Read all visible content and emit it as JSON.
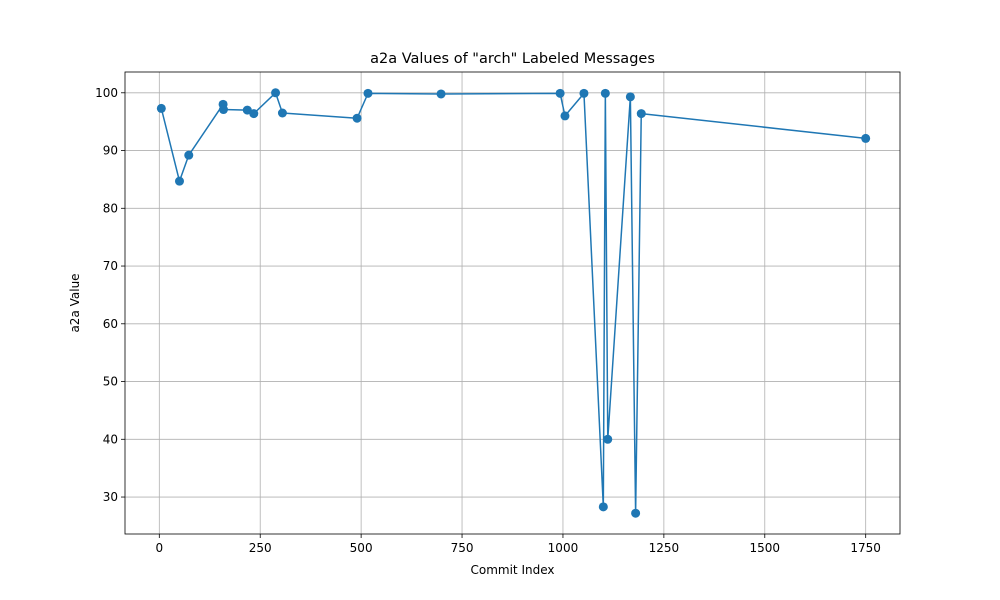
{
  "chart_data": {
    "type": "line",
    "title": "a2a Values of \"arch\" Labeled Messages",
    "xlabel": "Commit Index",
    "ylabel": "a2a Value",
    "xlim": [
      -85,
      1835
    ],
    "ylim": [
      23.6,
      103.6
    ],
    "xticks": [
      0,
      250,
      500,
      750,
      1000,
      1250,
      1500,
      1750
    ],
    "yticks": [
      30,
      40,
      50,
      60,
      70,
      80,
      90,
      100
    ],
    "grid": true,
    "color": "#1f77b4",
    "series": [
      {
        "x": [
          5,
          50,
          73,
          158,
          159,
          218,
          234,
          288,
          305,
          490,
          517,
          698,
          993,
          1005,
          1052,
          1100,
          1105,
          1111,
          1167,
          1180,
          1194,
          1750
        ],
        "y": [
          97.3,
          84.7,
          89.2,
          98.0,
          97.1,
          97.0,
          96.4,
          100.0,
          96.5,
          95.6,
          99.9,
          99.8,
          99.9,
          96.0,
          99.9,
          28.3,
          99.9,
          40.0,
          99.3,
          27.2,
          96.4,
          92.1
        ]
      }
    ]
  }
}
